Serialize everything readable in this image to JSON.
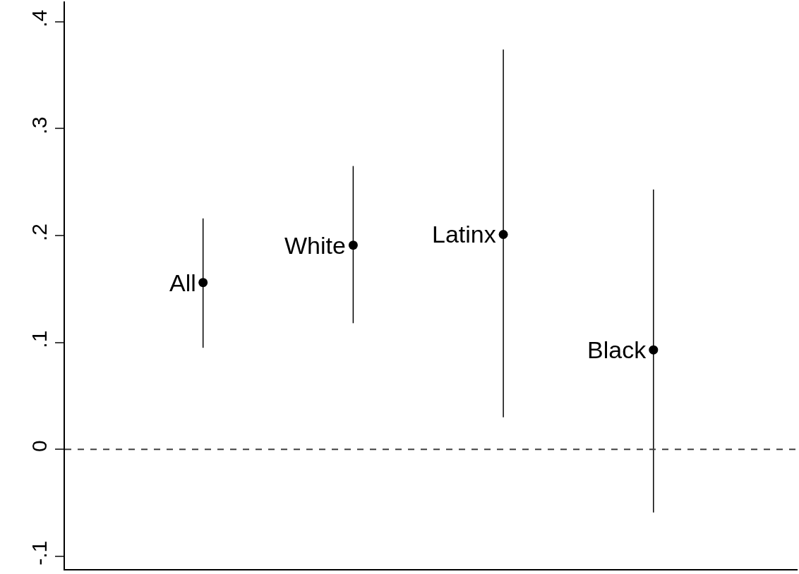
{
  "chart_data": {
    "type": "scatter",
    "categories": [
      null,
      null,
      null,
      null
    ],
    "series": [
      {
        "name": "All",
        "color": "#000000",
        "values": [
          0.156,
          null,
          null,
          null
        ],
        "errors": [
          [
            0.095,
            0.216
          ],
          null,
          null,
          null
        ]
      },
      {
        "name": "White",
        "color": "#000000",
        "values": [
          null,
          0.191,
          null,
          null
        ],
        "errors": [
          null,
          [
            0.118,
            0.265
          ],
          null,
          null
        ]
      },
      {
        "name": "Latinx",
        "color": "#000000",
        "values": [
          null,
          null,
          0.201,
          null
        ],
        "errors": [
          null,
          null,
          [
            0.03,
            0.374
          ],
          null
        ]
      },
      {
        "name": "Black",
        "color": "#000000",
        "values": [
          null,
          null,
          null,
          0.093
        ],
        "errors": [
          null,
          null,
          null,
          [
            -0.059,
            0.243
          ]
        ]
      }
    ],
    "ylim": [
      -0.112,
      0.419
    ],
    "yticks": [
      {
        "value": -0.1,
        "label": "-.1"
      },
      0,
      {
        "value": 0.1,
        "label": ".1"
      },
      {
        "value": 0.2,
        "label": ".2"
      },
      {
        "value": 0.3,
        "label": ".3"
      },
      {
        "value": 0.4,
        "label": ".4"
      }
    ],
    "tick_labels": "y",
    "grid": false,
    "legend": false,
    "marker": "circle",
    "ref_lines": [
      {
        "axis": "y",
        "value": 0,
        "color": "#404040",
        "line_style": "dashed"
      }
    ]
  }
}
